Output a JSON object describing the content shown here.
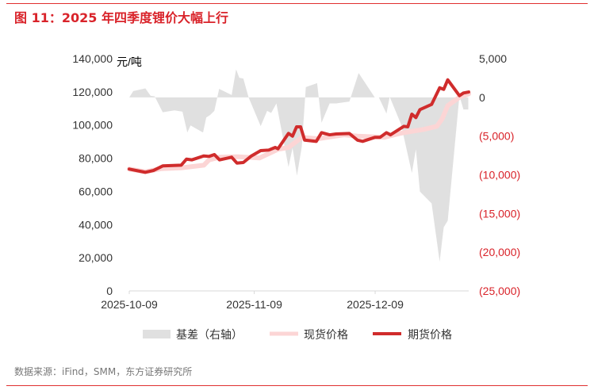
{
  "title": "图 11：2025 年四季度锂价大幅上行",
  "source": "数据来源：iFind，SMM，东方证券研究所",
  "chart_data": {
    "type": "line",
    "unit_label": "元/吨",
    "x_unit": "days since 2025-10-09",
    "xticks": [
      {
        "day": 0,
        "label": "2025-10-09"
      },
      {
        "day": 31,
        "label": "2025-11-09"
      },
      {
        "day": 61,
        "label": "2025-12-09"
      }
    ],
    "xlim": [
      0,
      84.2
    ],
    "left_axis": {
      "ylim": [
        0,
        140000
      ],
      "ticks": [
        0,
        20000,
        40000,
        60000,
        80000,
        100000,
        120000,
        140000
      ],
      "labels": [
        "0",
        "20,000",
        "40,000",
        "60,000",
        "80,000",
        "100,000",
        "120,000",
        "140,000"
      ]
    },
    "right_axis": {
      "ylim": [
        -25000,
        5000
      ],
      "ticks": [
        -25000,
        -20000,
        -15000,
        -10000,
        -5000,
        0,
        5000
      ],
      "labels": [
        "(25,000)",
        "(20,000)",
        "(15,000)",
        "(10,000)",
        "(5,000)",
        "0",
        "5,000"
      ],
      "color": "#d9232a"
    },
    "series": [
      {
        "name": "基差（右轴）",
        "type": "area",
        "axis": "right",
        "color": "#e0e0e0",
        "x": [
          0,
          1,
          4,
          5.3,
          6.3,
          8.3,
          11.2,
          13.2,
          14.4,
          15.2,
          18.3,
          19.1,
          20.1,
          21.1,
          22.3,
          25.4,
          26.5,
          27.3,
          28.3,
          29.6,
          32.6,
          34.2,
          35.2,
          36.5,
          39.5,
          40.5,
          41.6,
          42.8,
          43.8,
          46.6,
          47.7,
          49.7,
          51.3,
          54.6,
          56.9,
          60.9,
          61.9,
          63.8,
          64.6,
          67.4,
          70.1,
          71.1,
          72.1,
          75,
          77,
          78,
          79,
          81.9,
          82.9,
          84.1
        ],
        "y": [
          0,
          820,
          1160,
          205,
          135,
          -1920,
          -1680,
          -1845,
          -4540,
          -3620,
          -4540,
          -2600,
          -2255,
          -1740,
          1095,
          305,
          3620,
          2530,
          2425,
          0,
          -3720,
          -1740,
          -2020,
          -790,
          -8990,
          -6530,
          -10115,
          -6355,
          1330,
          1845,
          -3280,
          -790,
          -790,
          -545,
          3145,
          0,
          0,
          -2085,
          70,
          -3450,
          -9770,
          -6695,
          -12165,
          -13700,
          -21220,
          -16780,
          -15920,
          205,
          -1570,
          -1570
        ]
      },
      {
        "name": "现货价格",
        "type": "line",
        "axis": "left",
        "color": "#fcd5d5",
        "x": [
          0,
          4,
          8,
          12.9,
          18.5,
          19.8,
          22.4,
          26.7,
          32.3,
          36.9,
          39.5,
          41.5,
          42.8,
          46.8,
          53.3,
          56.6,
          63.2,
          67.1,
          69.7,
          73,
          76.3,
          77.6,
          79,
          81.9,
          84.2
        ],
        "y": [
          73440,
          71810,
          73730,
          74200,
          75800,
          79000,
          80600,
          80900,
          80130,
          85380,
          86480,
          90150,
          92550,
          91740,
          94130,
          93300,
          92550,
          94940,
          96040,
          97330,
          99240,
          103680,
          111660,
          116720,
          118830
        ]
      },
      {
        "name": "期货价格",
        "type": "line",
        "axis": "left",
        "color": "#d02c2c",
        "x": [
          0,
          4,
          6,
          8.3,
          12.9,
          14.2,
          15.5,
          18.5,
          19.8,
          21.1,
          22.4,
          25.4,
          26.7,
          28.3,
          30.3,
          32.6,
          34.6,
          36.2,
          36.9,
          39.5,
          40.5,
          41.5,
          42.5,
          43.5,
          46.4,
          47.7,
          49.7,
          51.3,
          54.6,
          56.6,
          57.9,
          60.9,
          62.2,
          63.8,
          64.8,
          68.1,
          69.1,
          70.1,
          71.1,
          72.1,
          75,
          77,
          78,
          79,
          81.9,
          82.9,
          84.2
        ],
        "y": [
          73440,
          71500,
          72600,
          75350,
          75800,
          79450,
          79000,
          81370,
          81080,
          82200,
          79000,
          80600,
          77070,
          77400,
          81370,
          84570,
          84900,
          86500,
          85700,
          94940,
          93300,
          98900,
          98900,
          90900,
          90150,
          95400,
          94100,
          94600,
          94900,
          90900,
          90150,
          92550,
          92550,
          95400,
          94100,
          99200,
          98900,
          106550,
          104500,
          109270,
          112430,
          122460,
          121500,
          127240,
          117680,
          119300,
          119900
        ]
      }
    ],
    "legend_position": "bottom"
  }
}
